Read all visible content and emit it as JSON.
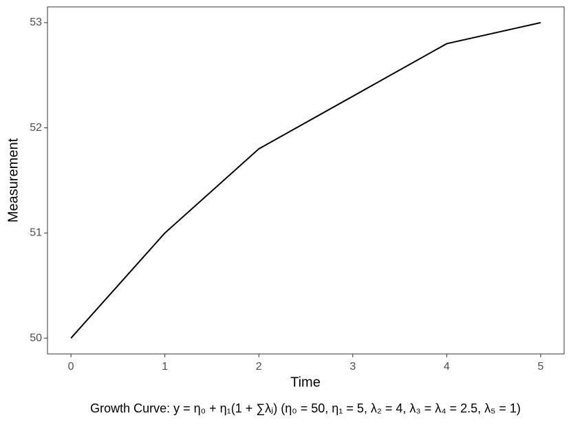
{
  "chart_data": {
    "type": "line",
    "x_label": "Time",
    "y_label": "Measurement",
    "caption": "Growth Curve: y = η₀ + η₁(1 + ∑λⱼ) (η₀ = 50, η₁ = 5, λ₂ = 4, λ₃ = λ₄ = 2.5, λ₅ = 1)",
    "x": [
      0,
      1,
      2,
      3,
      4,
      5
    ],
    "values": [
      50,
      51,
      51.8,
      52.3,
      52.8,
      53
    ],
    "color": "#000000",
    "xlim": [
      -0.25,
      5.25
    ],
    "xticks": [
      0,
      1,
      2,
      3,
      4,
      5
    ],
    "ylim": [
      49.85,
      53.15
    ],
    "yticks": [
      50,
      51,
      52,
      53
    ],
    "grid": false
  }
}
